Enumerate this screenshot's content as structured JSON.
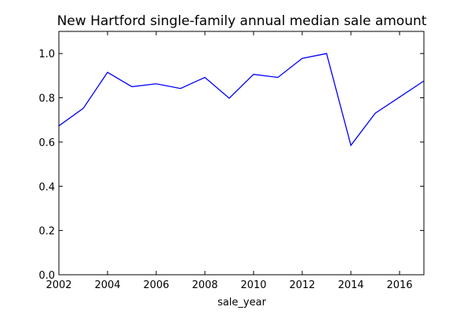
{
  "chart_data": {
    "type": "line",
    "title": "New Hartford single-family annual median sale amount",
    "xlabel": "sale_year",
    "ylabel": "",
    "x": [
      2002,
      2003,
      2004,
      2005,
      2006,
      2007,
      2008,
      2009,
      2010,
      2011,
      2012,
      2013,
      2014,
      2015,
      2016,
      2017
    ],
    "series": [
      {
        "values": [
          0.673,
          0.752,
          0.915,
          0.85,
          0.863,
          0.842,
          0.892,
          0.798,
          0.906,
          0.892,
          0.978,
          1.0,
          0.585,
          0.73,
          0.803,
          0.876
        ],
        "color": "#0000ff"
      }
    ],
    "xlim": [
      2002,
      2017
    ],
    "ylim": [
      0.0,
      1.1
    ],
    "xticks": [
      "2002",
      "2004",
      "2006",
      "2008",
      "2010",
      "2012",
      "2014",
      "2016"
    ],
    "yticks": [
      "0.0",
      "0.2",
      "0.4",
      "0.6",
      "0.8",
      "1.0"
    ],
    "grid": false,
    "legend": "none"
  }
}
